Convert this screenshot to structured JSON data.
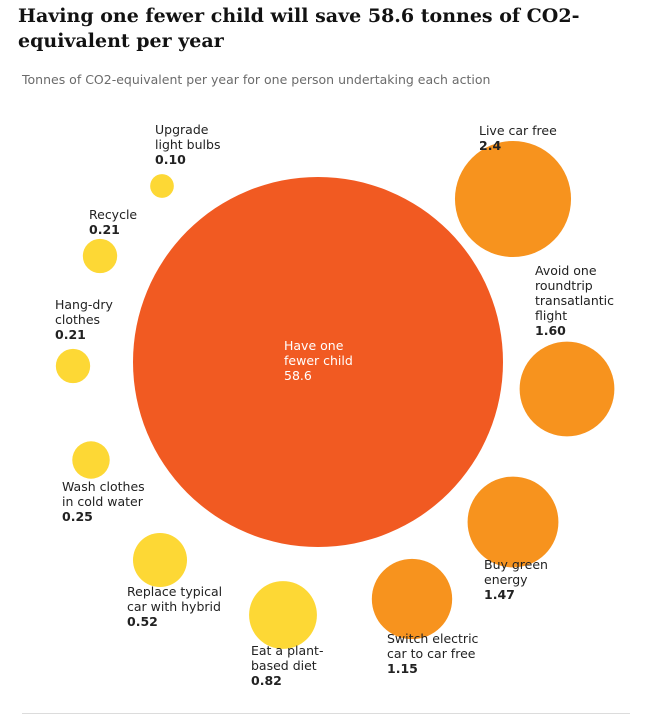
{
  "chart_data": {
    "type": "bubble",
    "title": "Having one fewer child will save 58.6 tonnes of CO2-equivalent per year",
    "subtitle": "Tonnes of CO2-equivalent per year for one person undertaking each action",
    "units": "tonnes CO2-equivalent per year",
    "colors": {
      "high": "#f15a22",
      "medium": "#f7931e",
      "low": "#fdd835"
    },
    "bubbles": [
      {
        "id": "fewer-child",
        "label_lines": [
          "Have one",
          "fewer child"
        ],
        "value": 58.6,
        "value_label": "58.6",
        "tier": "high"
      },
      {
        "id": "live-car-free",
        "label_lines": [
          "Live car free"
        ],
        "value": 2.4,
        "value_label": "2.4",
        "tier": "medium"
      },
      {
        "id": "avoid-flight",
        "label_lines": [
          "Avoid one",
          "roundtrip",
          "transatlantic",
          "flight"
        ],
        "value": 1.6,
        "value_label": "1.60",
        "tier": "medium"
      },
      {
        "id": "green-energy",
        "label_lines": [
          "Buy green",
          "energy"
        ],
        "value": 1.47,
        "value_label": "1.47",
        "tier": "medium"
      },
      {
        "id": "electric-car-free",
        "label_lines": [
          "Switch electric",
          "car to car free"
        ],
        "value": 1.15,
        "value_label": "1.15",
        "tier": "medium"
      },
      {
        "id": "plant-diet",
        "label_lines": [
          "Eat a plant-",
          "based diet"
        ],
        "value": 0.82,
        "value_label": "0.82",
        "tier": "low"
      },
      {
        "id": "hybrid-car",
        "label_lines": [
          "Replace typical",
          "car with hybrid"
        ],
        "value": 0.52,
        "value_label": "0.52",
        "tier": "low"
      },
      {
        "id": "cold-wash",
        "label_lines": [
          "Wash clothes",
          "in cold water"
        ],
        "value": 0.25,
        "value_label": "0.25",
        "tier": "low"
      },
      {
        "id": "hang-dry",
        "label_lines": [
          "Hang-dry",
          "clothes"
        ],
        "value": 0.21,
        "value_label": "0.21",
        "tier": "low"
      },
      {
        "id": "recycle",
        "label_lines": [
          "Recycle"
        ],
        "value": 0.21,
        "value_label": "0.21",
        "tier": "low"
      },
      {
        "id": "light-bulbs",
        "label_lines": [
          "Upgrade",
          "light bulbs"
        ],
        "value": 0.1,
        "value_label": "0.10",
        "tier": "low"
      }
    ]
  }
}
